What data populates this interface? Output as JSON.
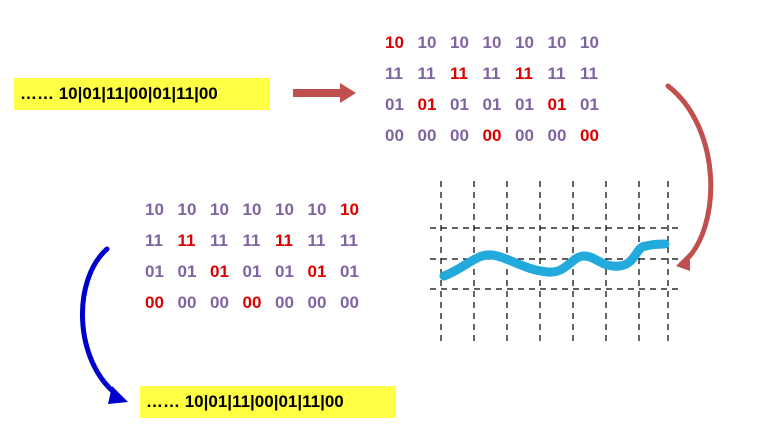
{
  "colors": {
    "bit_normal": "#8064a2",
    "bit_highlight": "#dd0000",
    "box_fill": "#ffff44",
    "arrow_red": "#c0504d",
    "arrow_blue": "#0000cc",
    "wave": "#22aadd"
  },
  "input_sequence": "…… 10|01|11|00|01|11|00",
  "output_sequence": "…… 10|01|11|00|01|11|00",
  "matrix_top": {
    "rows": [
      [
        "10",
        "10",
        "10",
        "10",
        "10",
        "10",
        "10"
      ],
      [
        "11",
        "11",
        "11",
        "11",
        "11",
        "11",
        "11"
      ],
      [
        "01",
        "01",
        "01",
        "01",
        "01",
        "01",
        "01"
      ],
      [
        "00",
        "00",
        "00",
        "00",
        "00",
        "00",
        "00"
      ]
    ],
    "highlight_cols": [
      0,
      2,
      1,
      3,
      1,
      2,
      3
    ]
  },
  "matrix_bottom": {
    "rows": [
      [
        "10",
        "10",
        "10",
        "10",
        "10",
        "10",
        "10"
      ],
      [
        "11",
        "11",
        "11",
        "11",
        "11",
        "11",
        "11"
      ],
      [
        "01",
        "01",
        "01",
        "01",
        "01",
        "01",
        "01"
      ],
      [
        "00",
        "00",
        "00",
        "00",
        "00",
        "00",
        "00"
      ]
    ],
    "highlight_cols": [
      3,
      1,
      2,
      3,
      1,
      2,
      0
    ]
  }
}
